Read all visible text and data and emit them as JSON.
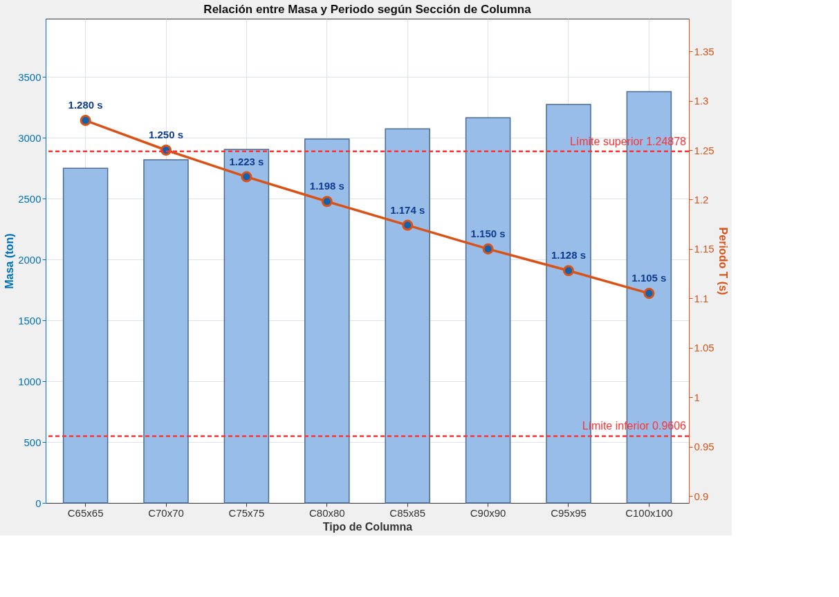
{
  "chart_data": {
    "type": "bar",
    "title": "Relación entre Masa y Periodo según Sección de Columna",
    "xlabel": "Tipo de Columna",
    "ylabel": "Masa (ton)",
    "y2label": "Periodo T (s)",
    "categories": [
      "C65x65",
      "C70x70",
      "C75x75",
      "C80x80",
      "C85x85",
      "C90x90",
      "C95x95",
      "C100x100"
    ],
    "series": [
      {
        "color": "#99bde9",
        "values": [
          2750,
          2820,
          2905,
          2990,
          3075,
          3165,
          3275,
          3380
        ]
      },
      {
        "type": "line",
        "axis": "y2",
        "color": "#d95319",
        "values": [
          1.28,
          1.25,
          1.223,
          1.198,
          1.174,
          1.15,
          1.128,
          1.105
        ],
        "value_labels": [
          "1.280 s",
          "1.250 s",
          "1.223 s",
          "1.198 s",
          "1.174 s",
          "1.150 s",
          "1.128 s",
          "1.105 s"
        ]
      }
    ],
    "ylim": [
      0,
      3980
    ],
    "yticks": [
      0,
      500,
      1000,
      1500,
      2000,
      2500,
      3000,
      3500
    ],
    "y2lim": [
      0.893,
      1.383
    ],
    "y2ticks": [
      0.9,
      0.95,
      1,
      1.05,
      1.1,
      1.15,
      1.2,
      1.25,
      1.3,
      1.35
    ],
    "ref_lines": [
      {
        "axis": "y2",
        "value": 1.24878,
        "label": "Límite superior 1.24878",
        "color": "#ff3333",
        "line_style": "dashed"
      },
      {
        "axis": "y2",
        "value": 0.9606,
        "label": "Límite inferior 0.9606",
        "color": "#ff3333",
        "line_style": "dashed"
      }
    ],
    "marker": "circle",
    "line_style": "solid",
    "grid": true
  }
}
